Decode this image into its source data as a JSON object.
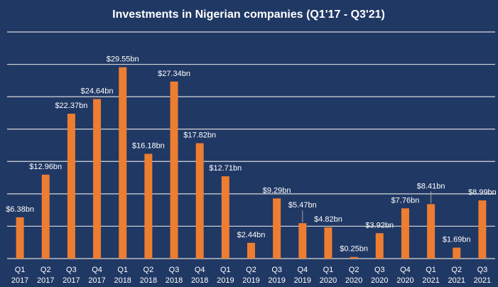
{
  "chart_data": {
    "type": "bar",
    "title": "Investments in Nigerian companies (Q1'17 - Q3'21)",
    "xlabel": "",
    "ylabel": "",
    "ylim": [
      0,
      35
    ],
    "grid": true,
    "ygrid_step": 5,
    "legend": "none",
    "categories": [
      [
        "Q1",
        "2017"
      ],
      [
        "Q2",
        "2017"
      ],
      [
        "Q3",
        "2017"
      ],
      [
        "Q4",
        "2017"
      ],
      [
        "Q1",
        "2018"
      ],
      [
        "Q2",
        "2018"
      ],
      [
        "Q3",
        "2018"
      ],
      [
        "Q4",
        "2018"
      ],
      [
        "Q1",
        "2019"
      ],
      [
        "Q2",
        "2019"
      ],
      [
        "Q3",
        "2019"
      ],
      [
        "Q4",
        "2019"
      ],
      [
        "Q1",
        "2020"
      ],
      [
        "Q2",
        "2020"
      ],
      [
        "Q3",
        "2020"
      ],
      [
        "Q4",
        "2020"
      ],
      [
        "Q1",
        "2021"
      ],
      [
        "Q2",
        "2021"
      ],
      [
        "Q3",
        "2021"
      ]
    ],
    "values": [
      6.38,
      12.96,
      22.37,
      24.64,
      29.55,
      16.18,
      27.34,
      17.82,
      12.71,
      2.44,
      9.29,
      5.47,
      4.82,
      0.25,
      3.92,
      7.76,
      8.41,
      1.69,
      8.99
    ],
    "data_labels": [
      "$6.38bn",
      "$12.96bn",
      "$22.37bn",
      "$24.64bn",
      "$29.55bn",
      "$16.18bn",
      "$27.34bn",
      "$17.82bn",
      "$12.71bn",
      "$2.44bn",
      "$9.29bn",
      "$5.47bn",
      "$4.82bn",
      "$0.25bn",
      "$3.92bn",
      "$7.76bn",
      "$8.41bn",
      "$1.69bn",
      "$8.99bn"
    ],
    "units": "USD billions"
  },
  "colors": {
    "background": "#203864",
    "bar": "#ED7D31",
    "text": "#ffffff",
    "grid": "#d9d9d9"
  }
}
